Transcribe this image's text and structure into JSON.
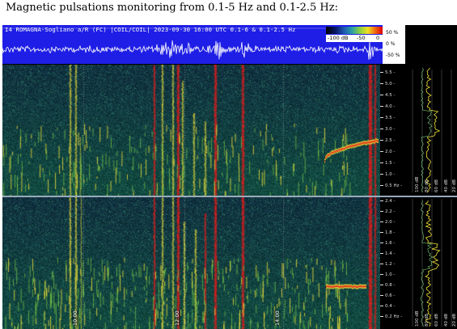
{
  "page": {
    "title": "Magnetic pulsations monitoring from 0.1-5 Hz and 0.1-2.5 Hz:"
  },
  "header": {
    "station_info": "I4 ROMAGNA-Sogliano a/R (FC) |COIL/COIL| 2023-09-30 16:00 UTC 0.1-6 & 0.1-2.5 Hz",
    "colorbar_labels": [
      "-100 dB",
      "-50",
      "0"
    ],
    "percent_labels": [
      "50 %",
      "0 %",
      "-50 %"
    ]
  },
  "upper_spectrogram": {
    "freq_ticks": [
      "5.5 -",
      "5.0 -",
      "4.5 -",
      "4.0 -",
      "3.5 -",
      "3.0 -",
      "2.5 -",
      "2.0 -",
      "1.5 -",
      "1.0 -",
      "0.5 Hz -"
    ],
    "side_labels": [
      "100 dB",
      "80 dB",
      "60 dB",
      "40 dB",
      "20 dB"
    ]
  },
  "lower_spectrogram": {
    "freq_ticks": [
      "2.4 -",
      "2.2 -",
      "2.0 -",
      "1.8 -",
      "1.6 -",
      "1.4 -",
      "1.2 -",
      "1.0 -",
      "0.8 -",
      "0.6 -",
      "0.4 -",
      "0.2 Hz -"
    ],
    "side_labels": [
      "100 dB",
      "80 dB",
      "60 dB",
      "40 dB",
      "20 dB"
    ]
  },
  "time_labels": [
    "10:00",
    "12:00",
    "14:00"
  ],
  "colors": {
    "waveform_bg": "#1e1ee6",
    "spectrogram_bg": "#0b2a38",
    "signal_hot": "#e31a1a",
    "signal_warm": "#f2e33a"
  }
}
